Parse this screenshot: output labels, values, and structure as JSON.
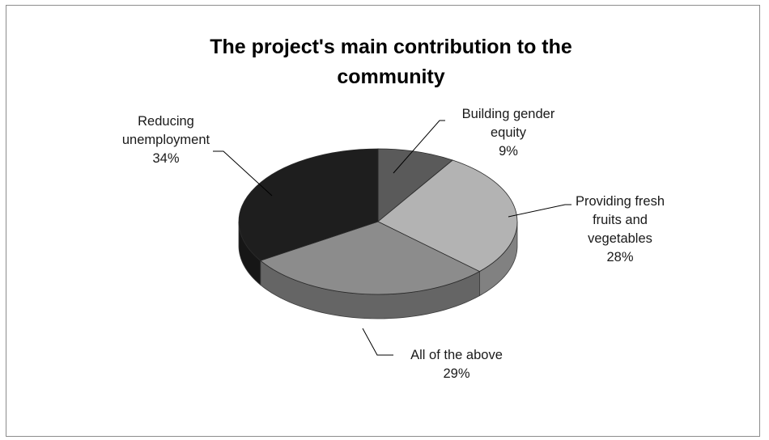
{
  "chart_data": {
    "type": "pie",
    "title": "The project's main contribution to the community",
    "title_lines": [
      "The project's main contribution to the",
      "community"
    ],
    "slices": [
      {
        "label": "Building gender equity",
        "label_lines": [
          "Building gender",
          "equity"
        ],
        "pct_label": "9%",
        "value": 9,
        "color": "#5a5a5a"
      },
      {
        "label": "Providing fresh fruits and vegetables",
        "label_lines": [
          "Providing fresh",
          "fruits and",
          "vegetables"
        ],
        "pct_label": "28%",
        "value": 28,
        "color": "#b3b3b3"
      },
      {
        "label": "All of the above",
        "label_lines": [
          "All of the above"
        ],
        "pct_label": "29%",
        "value": 29,
        "color": "#8c8c8c"
      },
      {
        "label": "Reducing unemployment",
        "label_lines": [
          "Reducing",
          "unemployment"
        ],
        "pct_label": "34%",
        "value": 34,
        "color": "#1e1e1e"
      }
    ],
    "style": "3d-pie",
    "legend": "none"
  }
}
